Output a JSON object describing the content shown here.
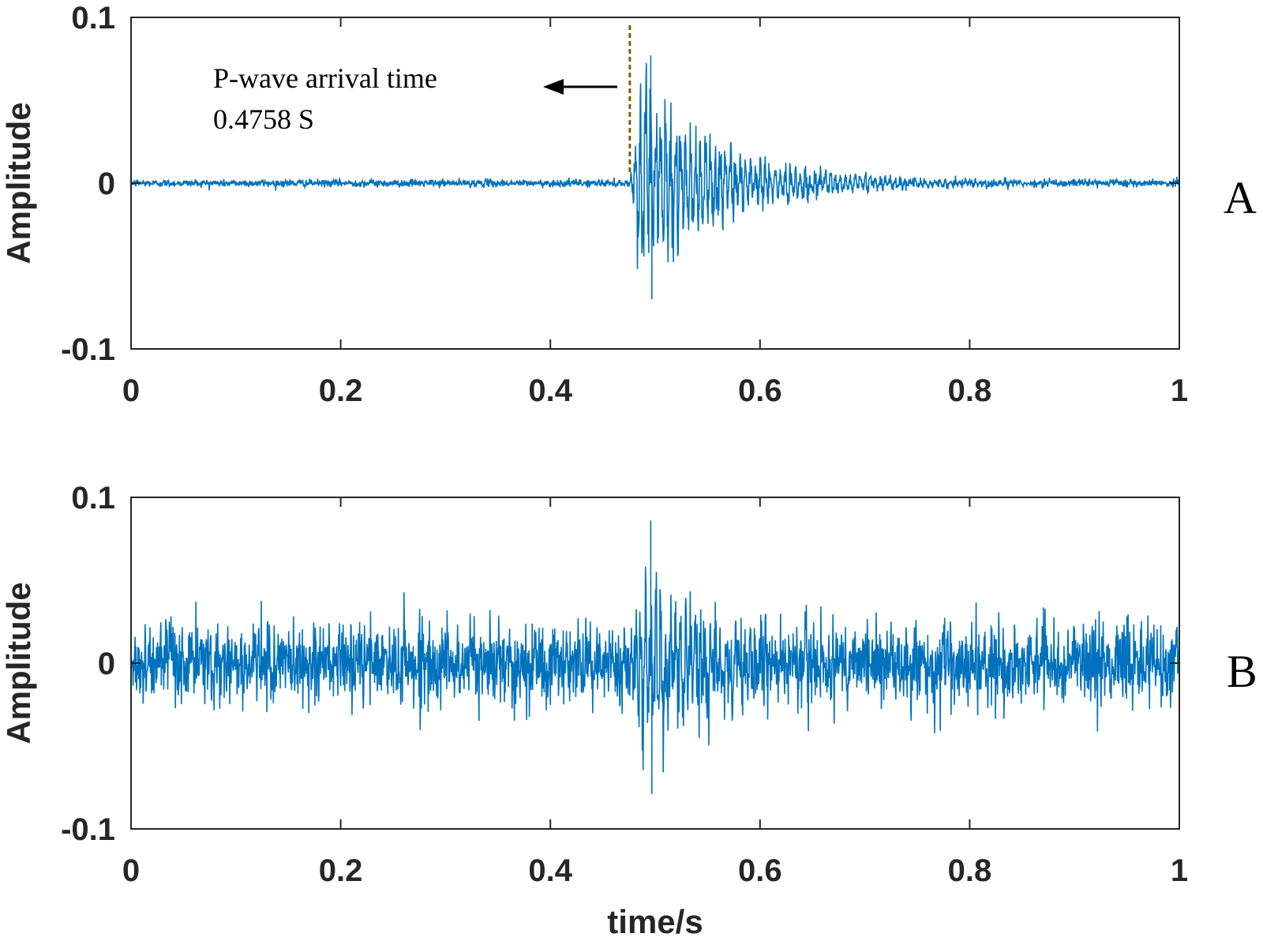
{
  "chart_data": [
    {
      "type": "line",
      "panel_label": "A",
      "ylabel": "Amplitude",
      "xlabel": "",
      "xlim": [
        0,
        1
      ],
      "ylim": [
        -0.1,
        0.1
      ],
      "x_ticks": [
        "0",
        "0.2",
        "0.4",
        "0.6",
        "0.8",
        "1"
      ],
      "y_ticks": [
        "-0.1",
        "0",
        "0.1"
      ],
      "grid": false,
      "line_color": "#0072BD",
      "signal": {
        "duration_s": 1.0,
        "noise_amplitude": 0.002,
        "arrival_time_s": 0.4758,
        "peak_amplitude": 0.077,
        "min_amplitude": -0.07,
        "decay_end_s": 0.75
      },
      "annotation": {
        "line1": "P-wave arrival time",
        "line2": "0.4758 S",
        "marker_x": 0.4758,
        "marker_color": "#7F6000"
      }
    },
    {
      "type": "line",
      "panel_label": "B",
      "ylabel": "Amplitude",
      "xlabel": "time/s",
      "xlim": [
        0,
        1
      ],
      "ylim": [
        -0.1,
        0.1
      ],
      "x_ticks": [
        "0",
        "0.2",
        "0.4",
        "0.6",
        "0.8",
        "1"
      ],
      "y_ticks": [
        "-0.1",
        "0",
        "0.1"
      ],
      "grid": false,
      "line_color": "#0072BD",
      "signal": {
        "duration_s": 1.0,
        "noise_amplitude": 0.022,
        "arrival_time_s": 0.4758,
        "peak_amplitude": 0.086,
        "min_amplitude": -0.079,
        "decay_end_s": 0.68
      }
    }
  ]
}
